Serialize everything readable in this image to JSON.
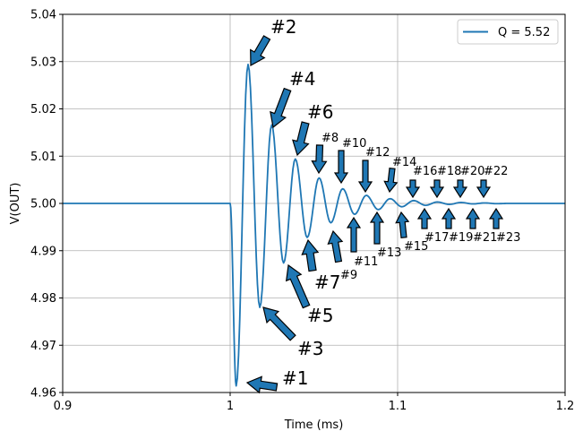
{
  "chart_data": {
    "type": "line",
    "title": "",
    "xlabel": "Time (ms)",
    "ylabel": "V(OUT)",
    "xlim": [
      0.9,
      1.2
    ],
    "ylim": [
      4.96,
      5.04
    ],
    "grid": true,
    "legend_placement": "top-right",
    "x_ticks": [
      0.9,
      1.0,
      1.1,
      1.2
    ],
    "x_tick_labels": [
      "0.9",
      "1",
      "1.1",
      "1.2"
    ],
    "y_ticks": [
      4.96,
      4.97,
      4.98,
      4.99,
      5.0,
      5.01,
      5.02,
      5.03,
      5.04
    ],
    "y_tick_labels": [
      "4.96",
      "4.97",
      "4.98",
      "4.99",
      "5.00",
      "5.01",
      "5.02",
      "5.03",
      "5.04"
    ],
    "series": [
      {
        "name": "Q = 5.52",
        "color": "#1f77b4",
        "model": {
          "baseline": 5.0,
          "step_time": 1.0,
          "peak_times": [
            1.0036,
            1.0107,
            1.0177,
            1.0248,
            1.0319,
            1.0389,
            1.046,
            1.0531,
            1.0601,
            1.0672,
            1.0743,
            1.0813,
            1.0884,
            1.0955,
            1.1025,
            1.1096,
            1.1167,
            1.1237,
            1.1308,
            1.1379,
            1.1449,
            1.152,
            1.1591
          ],
          "peak_values": [
            4.9614,
            5.0294,
            4.978,
            5.0166,
            4.9874,
            5.0094,
            4.9928,
            5.0054,
            4.9959,
            5.0031,
            4.9977,
            5.0017,
            4.9987,
            5.001,
            4.9993,
            5.0006,
            4.9996,
            5.0003,
            4.9998,
            5.0002,
            4.9999,
            5.0001,
            4.99995
          ]
        }
      }
    ],
    "annotations": [
      {
        "text": "#1",
        "size": "large"
      },
      {
        "text": "#2",
        "size": "large"
      },
      {
        "text": "#3",
        "size": "large"
      },
      {
        "text": "#4",
        "size": "large"
      },
      {
        "text": "#5",
        "size": "large"
      },
      {
        "text": "#6",
        "size": "large"
      },
      {
        "text": "#7",
        "size": "large"
      },
      {
        "text": "#8",
        "size": "medium"
      },
      {
        "text": "#9",
        "size": "medium"
      },
      {
        "text": "#10",
        "size": "small"
      },
      {
        "text": "#11",
        "size": "small"
      },
      {
        "text": "#12",
        "size": "small"
      },
      {
        "text": "#13",
        "size": "small"
      },
      {
        "text": "#14",
        "size": "small"
      },
      {
        "text": "#15",
        "size": "small"
      },
      {
        "text": "#16",
        "size": "small"
      },
      {
        "text": "#17",
        "size": "small"
      },
      {
        "text": "#18",
        "size": "small"
      },
      {
        "text": "#19",
        "size": "small"
      },
      {
        "text": "#20",
        "size": "small"
      },
      {
        "text": "#21",
        "size": "small"
      },
      {
        "text": "#22",
        "size": "small"
      },
      {
        "text": "#23",
        "size": "small"
      }
    ]
  }
}
